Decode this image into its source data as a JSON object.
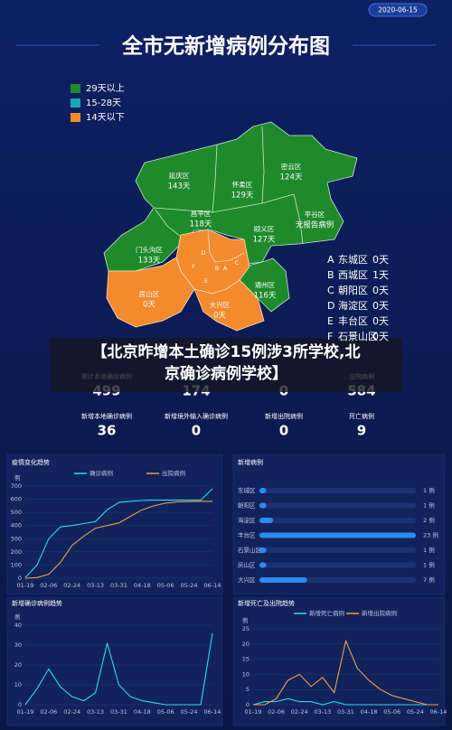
{
  "header": {
    "date": "2020-06-15",
    "title": "全市无新增病例分布图"
  },
  "map": {
    "legend": [
      {
        "label": "29天以上",
        "color": "#1e8a2b"
      },
      {
        "label": "15-28天",
        "color": "#17a6b3"
      },
      {
        "label": "14天以下",
        "color": "#f28a2e"
      }
    ],
    "districts": [
      {
        "name": "延庆区",
        "days": "143天"
      },
      {
        "name": "怀柔区",
        "days": "129天"
      },
      {
        "name": "密云区",
        "days": "124天"
      },
      {
        "name": "昌平区",
        "days": "118天"
      },
      {
        "name": "顺义区",
        "days": "127天"
      },
      {
        "name": "平谷区",
        "days": "无报告病例"
      },
      {
        "name": "门头沟区",
        "days": "133天"
      },
      {
        "name": "通州区",
        "days": "116天"
      },
      {
        "name": "房山区",
        "days": "0天"
      },
      {
        "name": "大兴区",
        "days": "0天"
      }
    ],
    "core_districts": [
      {
        "letter": "A",
        "name": "东城区",
        "days": "0天"
      },
      {
        "letter": "B",
        "name": "西城区",
        "days": "1天"
      },
      {
        "letter": "C",
        "name": "朝阳区",
        "days": "0天"
      },
      {
        "letter": "D",
        "name": "海淀区",
        "days": "0天"
      },
      {
        "letter": "E",
        "name": "丰台区",
        "days": "0天"
      },
      {
        "letter": "F",
        "name": "石景山区",
        "days": "0天"
      }
    ]
  },
  "caption": [
    "【北京昨增本土确诊15例涉3所学校,北",
    "京确诊病例学校】"
  ],
  "stats": [
    [
      {
        "label": "累计本地确诊病例",
        "value": 499,
        "color": "#5aa0c8"
      },
      {
        "label": "累计境外输入确诊病例",
        "value": 174,
        "color": "#a98ef7"
      },
      {
        "value": 0,
        "color": "#3f8ee8"
      },
      {
        "label": "出院病例",
        "value": 584,
        "color": "#f3a14b"
      }
    ],
    [
      {
        "label": "新增本地确诊病例",
        "value": 36,
        "color": "#23c6e8"
      },
      {
        "label": "新增境外输入确诊病例",
        "value": 0,
        "color": "#8e7cf0"
      },
      {
        "label": "新增出院病例",
        "value": 0,
        "color": "#2f9bf0"
      },
      {
        "label": "死亡病例",
        "value": 9,
        "color": "#f39c3b"
      }
    ]
  ],
  "chart_data": [
    {
      "type": "line",
      "title": "疫情变化趋势",
      "y_label": "例",
      "categories": [
        "01-19",
        null,
        "02-06",
        null,
        "02-24",
        null,
        "03-13",
        null,
        "03-31",
        null,
        "04-18",
        null,
        "05-06",
        null,
        "05-24",
        null,
        "06-14"
      ],
      "series": [
        {
          "name": "确诊病例",
          "color": "#2fd6f0",
          "values": [
            5,
            100,
            300,
            390,
            400,
            415,
            430,
            520,
            575,
            585,
            590,
            593,
            593,
            593,
            593,
            593,
            680
          ]
        },
        {
          "name": "出院病例",
          "color": "#e8a24a",
          "values": [
            0,
            5,
            30,
            120,
            250,
            320,
            380,
            400,
            420,
            470,
            520,
            550,
            570,
            580,
            582,
            584,
            584
          ]
        }
      ],
      "ylim": [
        0,
        700
      ],
      "yticks": [
        0,
        100,
        200,
        300,
        400,
        500,
        600,
        700
      ],
      "grid": true
    },
    {
      "type": "line",
      "title": "新增确诊病例趋势",
      "y_label": "例",
      "categories": [
        "01-19",
        null,
        "02-06",
        null,
        "02-24",
        null,
        "03-13",
        null,
        "03-31",
        null,
        "04-18",
        null,
        "05-06",
        null,
        "05-24",
        null,
        "06-14"
      ],
      "series": [
        {
          "color": "#2fd6f0",
          "values": [
            0,
            8,
            18,
            9,
            4,
            2,
            6,
            31,
            10,
            4,
            2,
            1,
            0,
            0,
            0,
            0,
            36
          ]
        }
      ],
      "ylim": [
        0,
        40
      ],
      "yticks": [
        0,
        10,
        20,
        30,
        40
      ],
      "grid": true
    },
    {
      "type": "hbar",
      "title": "新增病例",
      "categories": [
        "东城区",
        "朝阳区",
        "海淀区",
        "丰台区",
        "石景山区",
        "房山区",
        "大兴区"
      ],
      "values": [
        1,
        1,
        2,
        23,
        1,
        1,
        7
      ],
      "value_labels": [
        "1 例",
        "1 例",
        "2 例",
        "23 例",
        "1 例",
        "1 例",
        "7 例"
      ],
      "xlim": [
        0,
        23
      ],
      "color": "#2a8cf0"
    },
    {
      "type": "line",
      "title": "新增死亡及出院趋势",
      "y_label": "例",
      "categories": [
        "01-19",
        null,
        "02-06",
        null,
        "02-24",
        null,
        "03-13",
        null,
        "03-31",
        null,
        "04-18",
        null,
        "05-06",
        null,
        "05-24",
        null,
        "06-14"
      ],
      "series": [
        {
          "name": "新增死亡病例",
          "color": "#2fd6f0",
          "values": [
            0,
            1,
            1,
            2,
            1,
            1,
            0,
            1,
            0,
            0,
            0,
            0,
            0,
            0,
            0,
            0,
            0
          ]
        },
        {
          "name": "新增出院病例",
          "color": "#e8a24a",
          "values": [
            0,
            0,
            2,
            8,
            10,
            6,
            9,
            4,
            21,
            12,
            8,
            5,
            3,
            2,
            1,
            0,
            0
          ]
        }
      ],
      "ylim": [
        0,
        25
      ],
      "yticks": [
        0,
        5,
        10,
        15,
        20,
        25
      ],
      "grid": true
    }
  ]
}
